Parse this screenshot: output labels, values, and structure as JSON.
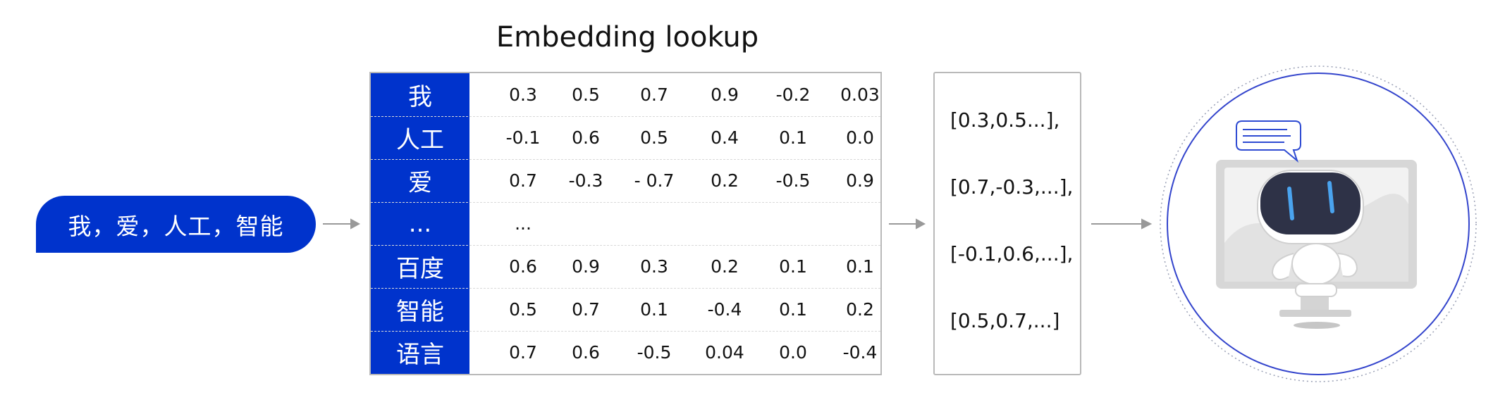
{
  "title": "Embedding lookup",
  "input_text": "我，爱，人工，智能",
  "table": {
    "rows": [
      {
        "token": "我",
        "values": [
          "0.3",
          "0.5",
          "0.7",
          "0.9",
          "-0.2",
          "0.03"
        ]
      },
      {
        "token": "人工",
        "values": [
          "-0.1",
          "0.6",
          "0.5",
          "0.4",
          "0.1",
          "0.0"
        ]
      },
      {
        "token": "爱",
        "values": [
          "0.7",
          "-0.3",
          "- 0.7",
          "0.2",
          "-0.5",
          "0.9"
        ]
      },
      {
        "token": "...",
        "values": [
          "..."
        ]
      },
      {
        "token": "百度",
        "values": [
          "0.6",
          "0.9",
          "0.3",
          "0.2",
          "0.1",
          "0.1"
        ]
      },
      {
        "token": "智能",
        "values": [
          "0.5",
          "0.7",
          "0.1",
          "-0.4",
          "0.1",
          "0.2"
        ]
      },
      {
        "token": "语言",
        "values": [
          "0.7",
          "0.6",
          "-0.5",
          "0.04",
          "0.0",
          "-0.4"
        ]
      }
    ]
  },
  "vectors": [
    "[0.3,0.5...],",
    "[0.7,-0.3,...],",
    "[-0.1,0.6,...],",
    "[0.5,0.7,...]"
  ],
  "colors": {
    "accent": "#0033cc",
    "circle": "#3344cc",
    "arrow": "#999999",
    "robot_face": "#2e3247",
    "robot_eye": "#4aa3ee"
  },
  "icons": [
    "robot-illustration",
    "chat-bubble-icon",
    "monitor-icon"
  ]
}
